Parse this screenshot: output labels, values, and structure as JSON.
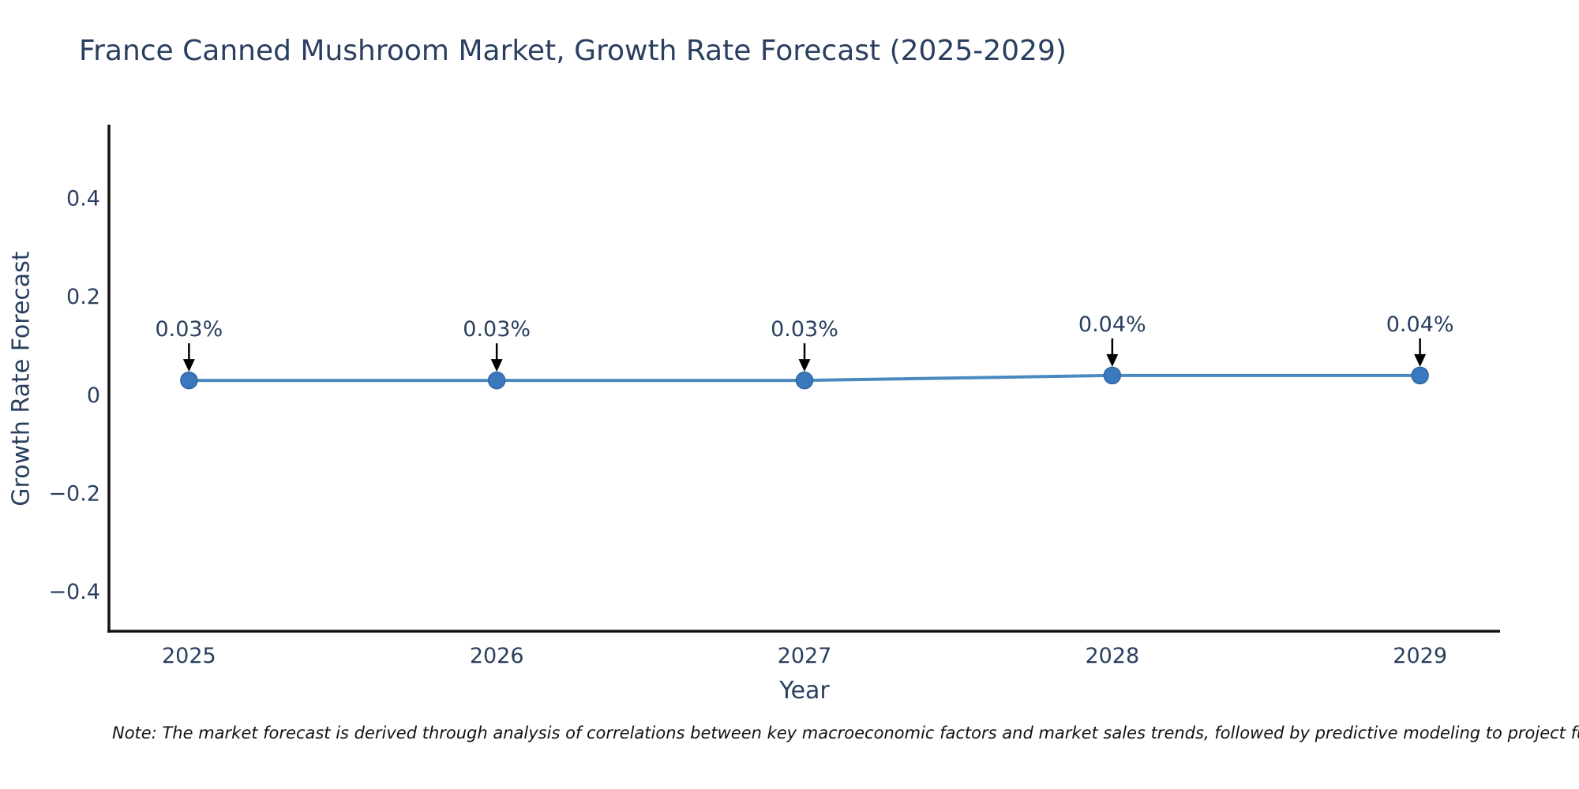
{
  "note": "Note: The market forecast is derived through analysis of correlations between key macroeconomic factors and market sales trends, followed by predictive modeling to project future sa",
  "chart_data": {
    "type": "line",
    "title": "France Canned Mushroom Market, Growth Rate Forecast (2025-2029)",
    "xlabel": "Year",
    "ylabel": "Growth Rate Forecast",
    "x": [
      2025,
      2026,
      2027,
      2028,
      2029
    ],
    "series": [
      {
        "name": "Growth Rate Forecast",
        "values": [
          0.03,
          0.03,
          0.03,
          0.04,
          0.04
        ],
        "point_labels": [
          "0.03%",
          "0.03%",
          "0.03%",
          "0.04%",
          "0.04%"
        ]
      }
    ],
    "xtick_labels": [
      "2025",
      "2026",
      "2027",
      "2028",
      "2029"
    ],
    "yticks": [
      -0.4,
      -0.2,
      0,
      0.2,
      0.4
    ],
    "ytick_labels": [
      "−0.4",
      "−0.2",
      "0",
      "0.2",
      "0.4"
    ],
    "xlim": [
      2024.74,
      2029.26
    ],
    "ylim": [
      -0.48,
      0.55
    ],
    "grid": false,
    "legend": false,
    "annotation_style": "down-arrow-to-point",
    "colors": {
      "line": "#4a89c0",
      "marker": "#3a79bd",
      "marker_edge": "#2f66a3",
      "axis": "#111111",
      "text": "#2a3f5f",
      "annotation": "#2a3f5f",
      "arrow": "#000000",
      "note": "#111111"
    }
  }
}
